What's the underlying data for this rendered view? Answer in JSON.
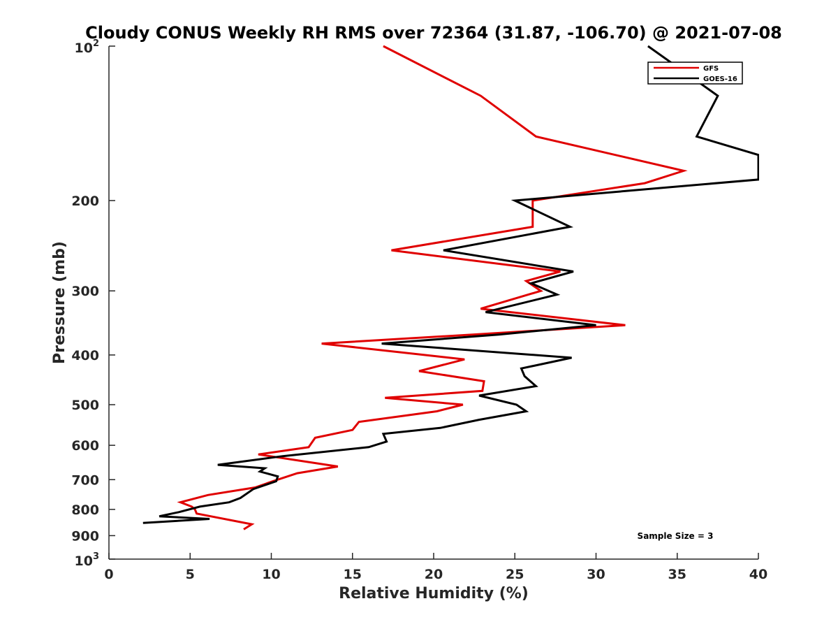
{
  "chart_data": {
    "type": "line",
    "title": "Cloudy CONUS Weekly RH RMS over 72364 (31.87, -106.70) @ 2021-07-08",
    "xlabel": "Relative Humidity (%)",
    "ylabel": "Pressure (mb)",
    "xlim": [
      0,
      40
    ],
    "ylim": [
      100,
      1000
    ],
    "y_scale": "log",
    "y_reversed": true,
    "x_ticks": [
      "0",
      "5",
      "10",
      "15",
      "20",
      "25",
      "30",
      "35",
      "40"
    ],
    "y_ticks": [
      {
        "value": 100,
        "base": "10",
        "exp": "2"
      },
      {
        "value": 200,
        "label": "200"
      },
      {
        "value": 300,
        "label": "300"
      },
      {
        "value": 400,
        "label": "400"
      },
      {
        "value": 500,
        "label": "500"
      },
      {
        "value": 600,
        "label": "600"
      },
      {
        "value": 700,
        "label": "700"
      },
      {
        "value": 800,
        "label": "800"
      },
      {
        "value": 900,
        "label": "900"
      },
      {
        "value": 1000,
        "base": "10",
        "exp": "3"
      }
    ],
    "legend": {
      "position": "top-right"
    },
    "annotation": "Sample Size = 3",
    "series": [
      {
        "name": "GFS",
        "color": "#e00000",
        "points": [
          [
            16.9,
            100
          ],
          [
            22.9,
            125
          ],
          [
            26.3,
            150
          ],
          [
            35.4,
            175
          ],
          [
            33.0,
            185
          ],
          [
            26.1,
            200
          ],
          [
            26.1,
            225
          ],
          [
            17.4,
            250
          ],
          [
            27.8,
            275
          ],
          [
            25.7,
            287
          ],
          [
            26.6,
            300
          ],
          [
            22.9,
            325
          ],
          [
            31.8,
            350
          ],
          [
            22.4,
            365
          ],
          [
            13.1,
            380
          ],
          [
            21.9,
            408
          ],
          [
            19.1,
            430
          ],
          [
            23.1,
            450
          ],
          [
            23.0,
            470
          ],
          [
            17.0,
            485
          ],
          [
            21.8,
            500
          ],
          [
            20.2,
            515
          ],
          [
            15.4,
            540
          ],
          [
            15.0,
            560
          ],
          [
            12.7,
            580
          ],
          [
            12.3,
            605
          ],
          [
            9.2,
            625
          ],
          [
            14.1,
            660
          ],
          [
            11.6,
            680
          ],
          [
            10.1,
            705
          ],
          [
            9.0,
            725
          ],
          [
            6.1,
            750
          ],
          [
            4.4,
            775
          ],
          [
            5.1,
            790
          ],
          [
            5.3,
            800
          ],
          [
            5.4,
            815
          ],
          [
            8.8,
            855
          ],
          [
            8.3,
            875
          ]
        ]
      },
      {
        "name": "GOES-16",
        "color": "#000000",
        "points": [
          [
            33.2,
            100
          ],
          [
            37.5,
            125
          ],
          [
            36.2,
            150
          ],
          [
            40.0,
            163
          ],
          [
            40.0,
            182
          ],
          [
            25.0,
            200
          ],
          [
            28.4,
            225
          ],
          [
            20.6,
            250
          ],
          [
            28.6,
            275
          ],
          [
            26.0,
            290
          ],
          [
            27.6,
            305
          ],
          [
            23.2,
            330
          ],
          [
            30.0,
            350
          ],
          [
            24.0,
            365
          ],
          [
            16.8,
            380
          ],
          [
            28.5,
            405
          ],
          [
            25.4,
            425
          ],
          [
            25.6,
            440
          ],
          [
            26.3,
            460
          ],
          [
            22.8,
            480
          ],
          [
            25.1,
            500
          ],
          [
            25.7,
            515
          ],
          [
            22.8,
            535
          ],
          [
            20.4,
            555
          ],
          [
            16.9,
            570
          ],
          [
            17.1,
            590
          ],
          [
            16.0,
            605
          ],
          [
            10.7,
            630
          ],
          [
            6.7,
            655
          ],
          [
            9.6,
            665
          ],
          [
            9.3,
            675
          ],
          [
            10.4,
            690
          ],
          [
            10.3,
            705
          ],
          [
            8.9,
            730
          ],
          [
            8.1,
            760
          ],
          [
            7.4,
            775
          ],
          [
            5.6,
            790
          ],
          [
            4.3,
            810
          ],
          [
            3.1,
            825
          ],
          [
            6.2,
            835
          ],
          [
            2.1,
            850
          ]
        ]
      }
    ]
  }
}
